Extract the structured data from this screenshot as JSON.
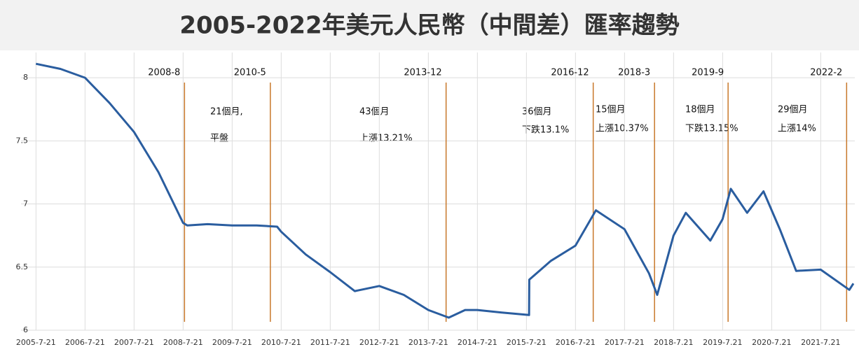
{
  "chart_data": {
    "type": "line",
    "title": "2005-2022年美元人民幣（中間差）匯率趨勢",
    "x": [
      "2005-7-21",
      "2006-1-21",
      "2006-7-21",
      "2007-1-21",
      "2007-7-21",
      "2008-1-21",
      "2008-7-21",
      "2008-8-21",
      "2009-1-21",
      "2009-7-21",
      "2010-1-21",
      "2010-6-21",
      "2010-7-21",
      "2011-1-21",
      "2011-7-21",
      "2012-1-21",
      "2012-7-21",
      "2013-1-21",
      "2013-7-21",
      "2013-12-21",
      "2014-4-21",
      "2014-7-21",
      "2015-1-21",
      "2015-8-10",
      "2015-8-12",
      "2016-1-21",
      "2016-7-21",
      "2016-12-21",
      "2017-7-21",
      "2018-1-21",
      "2018-3-21",
      "2018-7-21",
      "2018-10-21",
      "2019-4-21",
      "2019-7-21",
      "2019-9-21",
      "2020-1-21",
      "2020-5-21",
      "2020-9-21",
      "2021-1-21",
      "2021-7-21",
      "2022-2-21",
      "2022-3-21"
    ],
    "series": [
      {
        "name": "USD/CNY",
        "color": "#2a5d9f",
        "values": [
          8.11,
          8.07,
          8.0,
          7.8,
          7.57,
          7.25,
          6.85,
          6.83,
          6.84,
          6.83,
          6.83,
          6.82,
          6.78,
          6.6,
          6.46,
          6.31,
          6.35,
          6.28,
          6.16,
          6.1,
          6.16,
          6.16,
          6.14,
          6.12,
          6.4,
          6.55,
          6.67,
          6.95,
          6.8,
          6.45,
          6.28,
          6.75,
          6.93,
          6.71,
          6.88,
          7.12,
          6.93,
          7.1,
          6.8,
          6.47,
          6.48,
          6.32,
          6.37
        ]
      }
    ],
    "xlim": [
      "2005-4-1",
      "2022-4-1"
    ],
    "xticks": [
      "2005-7-21",
      "2006-7-21",
      "2007-7-21",
      "2008-7-21",
      "2009-7-21",
      "2010-7-21",
      "2011-7-21",
      "2012-7-21",
      "2013-7-21",
      "2014-7-21",
      "2015-7-21",
      "2016-7-21",
      "2017-7-21",
      {
        "value": "2018-7-21",
        "label": "2018-7.21"
      },
      {
        "value": "2019-7-21",
        "label": "2019-7.21"
      },
      {
        "value": "2020-7-21",
        "label": "2020-7.21"
      },
      {
        "value": "2021-7-21",
        "label": "2021-7.21"
      }
    ],
    "ylim": [
      6,
      8.2
    ],
    "yticks": [
      6,
      6.5,
      7,
      7.5,
      8
    ],
    "grid": true,
    "markers": [
      "2008-8",
      "2010-5",
      "2013-12",
      "2016-12",
      "2018-3",
      "2019-9",
      "2022-2"
    ],
    "marker_color": "#c8782a",
    "periods": [
      [
        "21個月,",
        "平盤"
      ],
      [
        "43個月",
        "上漲13.21%"
      ],
      [
        "36個月",
        "下跌13.1%"
      ],
      [
        "15個月",
        "上漲10.37%"
      ],
      [
        "18個月",
        "下跌13.15%"
      ],
      [
        "29個月",
        "上漲14%"
      ]
    ]
  }
}
